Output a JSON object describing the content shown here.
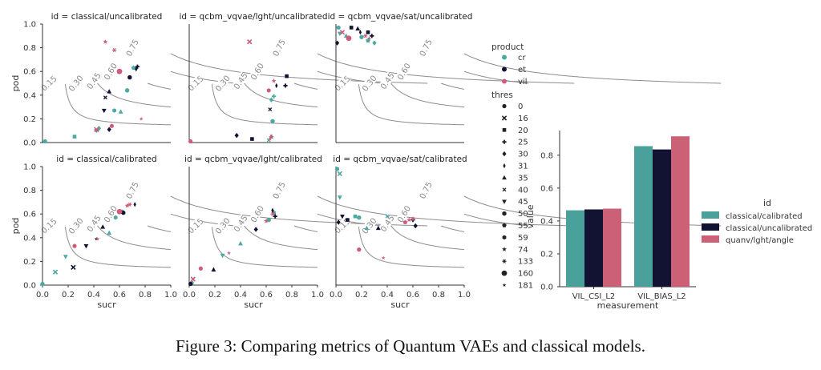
{
  "caption": "Figure 3: Comparing metrics of Quantum VAEs and classical models.",
  "colors": {
    "cr": "#4aa9a1",
    "et": "#111132",
    "vil": "#ce5b79",
    "curve": "#8c8c8c"
  },
  "chart_data": [
    {
      "type": "scatter",
      "title": "id = classical/uncalibrated",
      "xlabel": "",
      "ylabel": "pod",
      "xlim": [
        0,
        1
      ],
      "ylim": [
        0,
        1
      ],
      "contour_labels": [
        "0.15",
        "0.30",
        "0.45",
        "0.60",
        "0.75"
      ],
      "x_tick_labels": [],
      "y_tick_labels": [
        "0.0",
        "0.2",
        "0.4",
        "0.6",
        "0.8",
        "1.0"
      ],
      "series": [
        {
          "name": "cr",
          "points": [
            {
              "x": 0.02,
              "y": 0.01,
              "thres": "0"
            },
            {
              "x": 0.25,
              "y": 0.05,
              "thres": "20"
            },
            {
              "x": 0.44,
              "y": 0.12,
              "thres": "30"
            },
            {
              "x": 0.61,
              "y": 0.26,
              "thres": "35"
            },
            {
              "x": 0.66,
              "y": 0.44,
              "thres": "50"
            },
            {
              "x": 0.71,
              "y": 0.63,
              "thres": "55"
            },
            {
              "x": 0.56,
              "y": 0.27,
              "thres": "59"
            },
            {
              "x": 0.42,
              "y": 0.1,
              "thres": "45"
            }
          ]
        },
        {
          "name": "et",
          "points": [
            {
              "x": 0.48,
              "y": 0.27,
              "thres": "45"
            },
            {
              "x": 0.52,
              "y": 0.43,
              "thres": "35"
            },
            {
              "x": 0.49,
              "y": 0.38,
              "thres": "40"
            },
            {
              "x": 0.68,
              "y": 0.55,
              "thres": "50"
            },
            {
              "x": 0.73,
              "y": 0.62,
              "thres": "31"
            },
            {
              "x": 0.74,
              "y": 0.64,
              "thres": "25"
            },
            {
              "x": 0.52,
              "y": 0.11,
              "thres": "30"
            }
          ]
        },
        {
          "name": "vil",
          "points": [
            {
              "x": 0.49,
              "y": 0.85,
              "thres": "74"
            },
            {
              "x": 0.56,
              "y": 0.78,
              "thres": "133"
            },
            {
              "x": 0.6,
              "y": 0.6,
              "thres": "160"
            },
            {
              "x": 0.54,
              "y": 0.14,
              "thres": "0"
            },
            {
              "x": 0.42,
              "y": 0.11,
              "thres": "16"
            },
            {
              "x": 0.43,
              "y": 0.1,
              "thres": "181"
            },
            {
              "x": 0.77,
              "y": 0.2,
              "thres": "181"
            }
          ]
        }
      ]
    },
    {
      "type": "scatter",
      "title": "id = qcbm_vqvae/lght/uncalibrated",
      "xlabel": "",
      "ylabel": "",
      "xlim": [
        0,
        1
      ],
      "ylim": [
        0,
        1
      ],
      "contour_labels": [
        "0.15",
        "0.30",
        "0.45",
        "0.60",
        "0.75"
      ],
      "x_tick_labels": [],
      "y_tick_labels": [],
      "series": [
        {
          "name": "cr",
          "points": [
            {
              "x": 0.64,
              "y": 0.05,
              "thres": "35"
            },
            {
              "x": 0.62,
              "y": 0.02,
              "thres": "40"
            },
            {
              "x": 0.65,
              "y": 0.18,
              "thres": "50"
            },
            {
              "x": 0.64,
              "y": 0.36,
              "thres": "30"
            },
            {
              "x": 0.66,
              "y": 0.39,
              "thres": "25"
            }
          ]
        },
        {
          "name": "et",
          "points": [
            {
              "x": 0.37,
              "y": 0.06,
              "thres": "30"
            },
            {
              "x": 0.49,
              "y": 0.03,
              "thres": "20"
            },
            {
              "x": 0.76,
              "y": 0.56,
              "thres": "20"
            },
            {
              "x": 0.75,
              "y": 0.48,
              "thres": "25"
            },
            {
              "x": 0.68,
              "y": 0.48,
              "thres": "31"
            },
            {
              "x": 0.63,
              "y": 0.28,
              "thres": "40"
            }
          ]
        },
        {
          "name": "vil",
          "points": [
            {
              "x": 0.01,
              "y": 0.01,
              "thres": "0"
            },
            {
              "x": 0.47,
              "y": 0.85,
              "thres": "16"
            },
            {
              "x": 0.62,
              "y": 0.44,
              "thres": "59"
            },
            {
              "x": 0.66,
              "y": 0.52,
              "thres": "74"
            },
            {
              "x": 0.64,
              "y": 0.05,
              "thres": "133"
            },
            {
              "x": 0.63,
              "y": 0.03,
              "thres": "181"
            }
          ]
        }
      ]
    },
    {
      "type": "scatter",
      "title": "id = qcbm_vqvae/sat/uncalibrated",
      "xlabel": "",
      "ylabel": "",
      "xlim": [
        0,
        1
      ],
      "ylim": [
        0,
        1
      ],
      "contour_labels": [
        "0.15",
        "0.30",
        "0.45",
        "0.60",
        "0.75"
      ],
      "x_tick_labels": [],
      "y_tick_labels": [],
      "series": [
        {
          "name": "cr",
          "points": [
            {
              "x": 0.02,
              "y": 0.97,
              "thres": "0"
            },
            {
              "x": 0.03,
              "y": 0.92,
              "thres": "45"
            },
            {
              "x": 0.2,
              "y": 0.89,
              "thres": "50"
            },
            {
              "x": 0.25,
              "y": 0.86,
              "thres": "55"
            },
            {
              "x": 0.3,
              "y": 0.84,
              "thres": "30"
            },
            {
              "x": 0.08,
              "y": 0.9,
              "thres": "35"
            }
          ]
        },
        {
          "name": "et",
          "points": [
            {
              "x": 0.01,
              "y": 0.84,
              "thres": "30"
            },
            {
              "x": 0.12,
              "y": 0.97,
              "thres": "20"
            },
            {
              "x": 0.17,
              "y": 0.96,
              "thres": "35"
            },
            {
              "x": 0.25,
              "y": 0.93,
              "thres": "20"
            },
            {
              "x": 0.28,
              "y": 0.9,
              "thres": "25"
            },
            {
              "x": 0.19,
              "y": 0.93,
              "thres": "31"
            }
          ]
        },
        {
          "name": "vil",
          "points": [
            {
              "x": 0.05,
              "y": 0.93,
              "thres": "16"
            },
            {
              "x": 0.23,
              "y": 0.9,
              "thres": "133"
            },
            {
              "x": 0.26,
              "y": 0.88,
              "thres": "181"
            },
            {
              "x": 0.1,
              "y": 0.88,
              "thres": "160"
            }
          ]
        }
      ]
    },
    {
      "type": "scatter",
      "title": "id = classical/calibrated",
      "xlabel": "sucr",
      "ylabel": "pod",
      "xlim": [
        0,
        1
      ],
      "ylim": [
        0,
        1
      ],
      "contour_labels": [
        "0.15",
        "0.30",
        "0.45",
        "0.60",
        "0.75"
      ],
      "x_tick_labels": [
        "0.0",
        "0.2",
        "0.4",
        "0.6",
        "0.8",
        "1.0"
      ],
      "y_tick_labels": [
        "0.0",
        "0.2",
        "0.4",
        "0.6",
        "0.8",
        "1.0"
      ],
      "series": [
        {
          "name": "cr",
          "points": [
            {
              "x": 0.0,
              "y": 0.01,
              "thres": "0"
            },
            {
              "x": 0.1,
              "y": 0.11,
              "thres": "16"
            },
            {
              "x": 0.18,
              "y": 0.24,
              "thres": "45"
            },
            {
              "x": 0.52,
              "y": 0.44,
              "thres": "35"
            },
            {
              "x": 0.57,
              "y": 0.57,
              "thres": "59"
            },
            {
              "x": 0.62,
              "y": 0.62,
              "thres": "50"
            }
          ]
        },
        {
          "name": "et",
          "points": [
            {
              "x": 0.24,
              "y": 0.15,
              "thres": "16"
            },
            {
              "x": 0.34,
              "y": 0.33,
              "thres": "45"
            },
            {
              "x": 0.47,
              "y": 0.49,
              "thres": "35"
            },
            {
              "x": 0.63,
              "y": 0.61,
              "thres": "50"
            },
            {
              "x": 0.72,
              "y": 0.68,
              "thres": "31"
            },
            {
              "x": 0.42,
              "y": 0.39,
              "thres": "181"
            }
          ]
        },
        {
          "name": "vil",
          "points": [
            {
              "x": 0.25,
              "y": 0.33,
              "thres": "0"
            },
            {
              "x": 0.43,
              "y": 0.39,
              "thres": "181"
            },
            {
              "x": 0.66,
              "y": 0.67,
              "thres": "74"
            },
            {
              "x": 0.68,
              "y": 0.68,
              "thres": "133"
            },
            {
              "x": 0.6,
              "y": 0.62,
              "thres": "160"
            }
          ]
        }
      ]
    },
    {
      "type": "scatter",
      "title": "id = qcbm_vqvae/lght/calibrated",
      "xlabel": "sucr",
      "ylabel": "",
      "xlim": [
        0,
        1
      ],
      "ylim": [
        0,
        1
      ],
      "contour_labels": [
        "0.15",
        "0.30",
        "0.45",
        "0.60",
        "0.75"
      ],
      "x_tick_labels": [
        "0.0",
        "0.2",
        "0.4",
        "0.6",
        "0.8",
        "1.0"
      ],
      "y_tick_labels": [],
      "series": [
        {
          "name": "cr",
          "points": [
            {
              "x": 0.02,
              "y": 0.02,
              "thres": "0"
            },
            {
              "x": 0.26,
              "y": 0.25,
              "thres": "45"
            },
            {
              "x": 0.4,
              "y": 0.35,
              "thres": "35"
            },
            {
              "x": 0.62,
              "y": 0.55,
              "thres": "50"
            },
            {
              "x": 0.66,
              "y": 0.61,
              "thres": "59"
            }
          ]
        },
        {
          "name": "et",
          "points": [
            {
              "x": 0.01,
              "y": 0.01,
              "thres": "0"
            },
            {
              "x": 0.19,
              "y": 0.13,
              "thres": "35"
            },
            {
              "x": 0.52,
              "y": 0.47,
              "thres": "30"
            },
            {
              "x": 0.67,
              "y": 0.58,
              "thres": "25"
            },
            {
              "x": 0.65,
              "y": 0.63,
              "thres": "31"
            }
          ]
        },
        {
          "name": "vil",
          "points": [
            {
              "x": 0.03,
              "y": 0.05,
              "thres": "16"
            },
            {
              "x": 0.09,
              "y": 0.14,
              "thres": "0"
            },
            {
              "x": 0.31,
              "y": 0.27,
              "thres": "181"
            },
            {
              "x": 0.6,
              "y": 0.54,
              "thres": "74"
            },
            {
              "x": 0.65,
              "y": 0.6,
              "thres": "133"
            }
          ]
        }
      ]
    },
    {
      "type": "scatter",
      "title": "id = qcbm_vqvae/sat/calibrated",
      "xlabel": "sucr",
      "ylabel": "",
      "xlim": [
        0,
        1
      ],
      "ylim": [
        0,
        1
      ],
      "contour_labels": [
        "0.15",
        "0.30",
        "0.45",
        "0.60",
        "0.75"
      ],
      "x_tick_labels": [
        "0.0",
        "0.2",
        "0.4",
        "0.6",
        "0.8",
        "1.0"
      ],
      "y_tick_labels": [],
      "series": [
        {
          "name": "cr",
          "points": [
            {
              "x": 0.01,
              "y": 0.98,
              "thres": "0"
            },
            {
              "x": 0.03,
              "y": 0.94,
              "thres": "16"
            },
            {
              "x": 0.03,
              "y": 0.74,
              "thres": "45"
            },
            {
              "x": 0.18,
              "y": 0.57,
              "thres": "50"
            },
            {
              "x": 0.24,
              "y": 0.48,
              "thres": "35"
            },
            {
              "x": 0.4,
              "y": 0.58,
              "thres": "40"
            },
            {
              "x": 0.15,
              "y": 0.58,
              "thres": "20"
            }
          ]
        },
        {
          "name": "et",
          "points": [
            {
              "x": 0.02,
              "y": 0.53,
              "thres": "30"
            },
            {
              "x": 0.05,
              "y": 0.58,
              "thres": "45"
            },
            {
              "x": 0.09,
              "y": 0.55,
              "thres": "20"
            },
            {
              "x": 0.33,
              "y": 0.48,
              "thres": "35"
            },
            {
              "x": 0.6,
              "y": 0.55,
              "thres": "25"
            },
            {
              "x": 0.62,
              "y": 0.5,
              "thres": "30"
            }
          ]
        },
        {
          "name": "vil",
          "points": [
            {
              "x": 0.18,
              "y": 0.3,
              "thres": "0"
            },
            {
              "x": 0.37,
              "y": 0.23,
              "thres": "181"
            },
            {
              "x": 0.54,
              "y": 0.53,
              "thres": "55"
            },
            {
              "x": 0.57,
              "y": 0.55,
              "thres": "74"
            },
            {
              "x": 0.6,
              "y": 0.56,
              "thres": "133"
            }
          ]
        }
      ]
    },
    {
      "type": "bar",
      "title": "",
      "xlabel": "measurement",
      "ylabel": "value",
      "categories": [
        "VIL_CSI_L2",
        "VIL_BIAS_L2"
      ],
      "ylim": [
        0,
        0.95
      ],
      "y_tick_labels": [
        "0.0",
        "0.2",
        "0.4",
        "0.6",
        "0.8"
      ],
      "legend_title": "id",
      "legend_position": "right",
      "series": [
        {
          "name": "classical/calibrated",
          "color": "#4aa09a",
          "values": [
            0.465,
            0.855
          ]
        },
        {
          "name": "classical/uncalibrated",
          "color": "#121233",
          "values": [
            0.47,
            0.835
          ]
        },
        {
          "name": "quanv/lght/angle",
          "color": "#cb6077",
          "values": [
            0.475,
            0.915
          ]
        }
      ]
    }
  ],
  "scatter_legend": {
    "product_title": "product",
    "products": [
      "cr",
      "et",
      "vil"
    ],
    "thres_title": "thres",
    "thresholds": [
      {
        "label": "0",
        "marker": "circle"
      },
      {
        "label": "16",
        "marker": "x"
      },
      {
        "label": "20",
        "marker": "square"
      },
      {
        "label": "25",
        "marker": "plus"
      },
      {
        "label": "30",
        "marker": "diamond"
      },
      {
        "label": "31",
        "marker": "thin-diamond"
      },
      {
        "label": "35",
        "marker": "triangle-up"
      },
      {
        "label": "40",
        "marker": "small-x"
      },
      {
        "label": "45",
        "marker": "triangle-down"
      },
      {
        "label": "50",
        "marker": "octagon"
      },
      {
        "label": "55",
        "marker": "pentagon"
      },
      {
        "label": "59",
        "marker": "hexagon"
      },
      {
        "label": "74",
        "marker": "star"
      },
      {
        "label": "133",
        "marker": "asterisk"
      },
      {
        "label": "160",
        "marker": "big-circle"
      },
      {
        "label": "181",
        "marker": "small-star"
      }
    ]
  }
}
